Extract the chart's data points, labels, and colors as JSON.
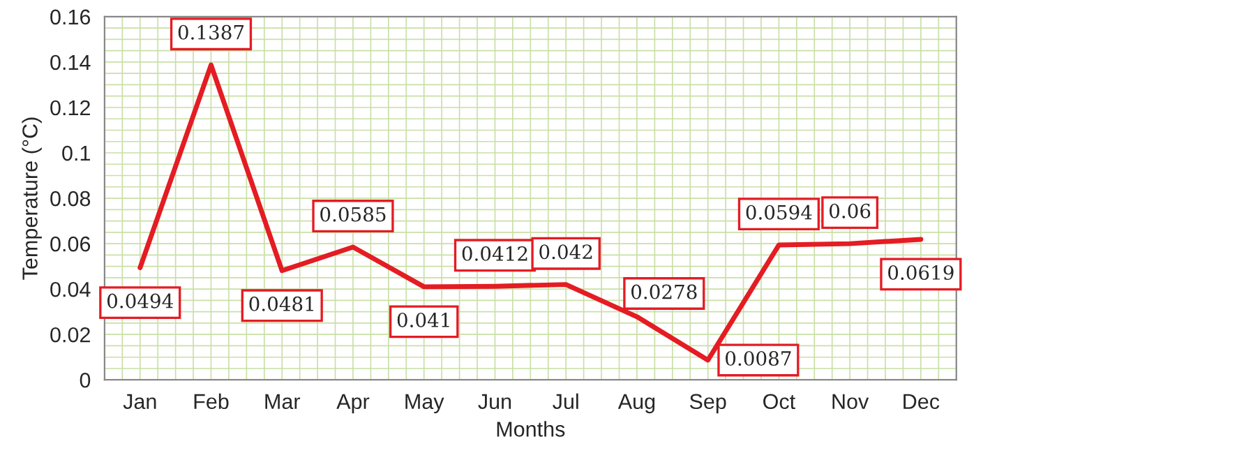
{
  "chart_data": {
    "type": "line",
    "xlabel": "Months",
    "ylabel": "Temperature (°C)",
    "categories": [
      "Jan",
      "Feb",
      "Mar",
      "Apr",
      "May",
      "Jun",
      "Jul",
      "Aug",
      "Sep",
      "Oct",
      "Nov",
      "Dec"
    ],
    "series": [
      {
        "color": "#e41c23",
        "values": [
          0.0494,
          0.1387,
          0.0481,
          0.0585,
          0.041,
          0.0412,
          0.042,
          0.0278,
          0.0087,
          0.0594,
          0.06,
          0.0619
        ]
      }
    ],
    "ylim": [
      0,
      0.16
    ],
    "yticks": [
      0,
      0.02,
      0.04,
      0.06,
      0.08,
      0.1,
      0.12,
      0.14,
      0.16
    ],
    "grid": true,
    "data_labels": true,
    "marker": "none",
    "line_style": "solid"
  }
}
